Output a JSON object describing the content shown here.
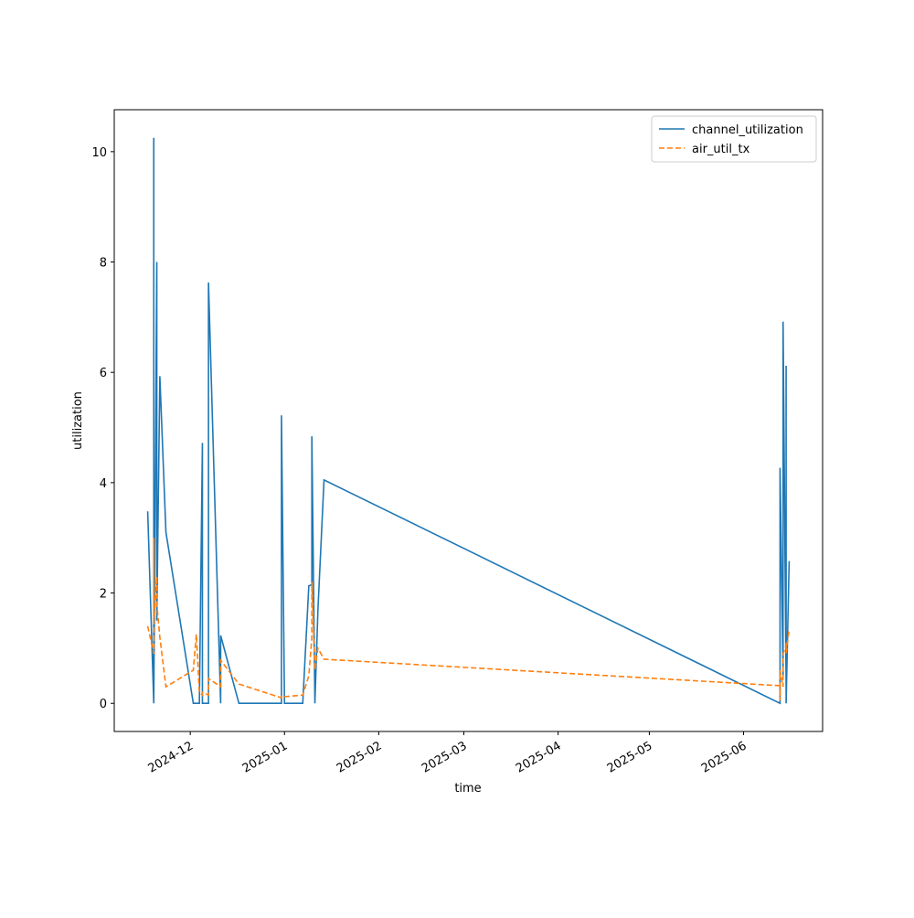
{
  "chart_data": {
    "type": "line",
    "x_label": "time",
    "y_label": "utilization",
    "x": [
      "2024-11-17",
      "2024-11-19",
      "2024-11-19",
      "2024-11-19",
      "2024-11-20",
      "2024-11-20",
      "2024-11-21",
      "2024-11-23",
      "2024-12-02",
      "2024-12-03",
      "2024-12-04",
      "2024-12-05",
      "2024-12-05",
      "2024-12-07",
      "2024-12-07",
      "2024-12-11",
      "2024-12-11",
      "2024-12-17",
      "2024-12-31",
      "2024-12-31",
      "2025-01-01",
      "2025-01-07",
      "2025-01-09",
      "2025-01-10",
      "2025-01-10",
      "2025-01-11",
      "2025-01-12",
      "2025-01-14",
      "2025-06-13",
      "2025-06-13",
      "2025-06-13",
      "2025-06-14",
      "2025-06-14",
      "2025-06-15",
      "2025-06-15",
      "2025-06-15",
      "2025-06-16"
    ],
    "series": [
      {
        "name": "channel_utilization",
        "color": "#1f77b4",
        "dash": "solid",
        "values": [
          3.48,
          0,
          10.25,
          0,
          8.0,
          1.5,
          5.93,
          3.1,
          0,
          0,
          0,
          4.72,
          0,
          0,
          7.63,
          0,
          1.23,
          0,
          0,
          5.22,
          0,
          0,
          2.13,
          2.15,
          4.84,
          0,
          1.7,
          4.05,
          0,
          1.95,
          4.27,
          0.5,
          6.92,
          0.3,
          6.12,
          0,
          2.58
        ]
      },
      {
        "name": "air_util_tx",
        "color": "#ff7f0e",
        "dash": "dashed",
        "values": [
          1.4,
          0.9,
          3.0,
          1.5,
          2.3,
          1.8,
          1.2,
          0.3,
          0.6,
          1.25,
          0.2,
          0.15,
          0.2,
          0.15,
          0.45,
          0.3,
          0.78,
          0.35,
          0.1,
          0.13,
          0.12,
          0.15,
          0.5,
          1.2,
          2.2,
          0.6,
          1.0,
          0.8,
          0.32,
          0.05,
          0.6,
          0.3,
          0.9,
          1.05,
          1.1,
          0.9,
          1.35
        ]
      }
    ],
    "xlim": [
      "2024-11-06",
      "2025-06-27"
    ],
    "xticks": [
      "2024-12",
      "2025-01",
      "2025-02",
      "2025-03",
      "2025-04",
      "2025-05",
      "2025-06"
    ],
    "ylim": [
      -0.51,
      10.76
    ],
    "yticks": [
      0,
      2,
      4,
      6,
      8,
      10
    ],
    "grid": false,
    "legend": "upper right"
  }
}
